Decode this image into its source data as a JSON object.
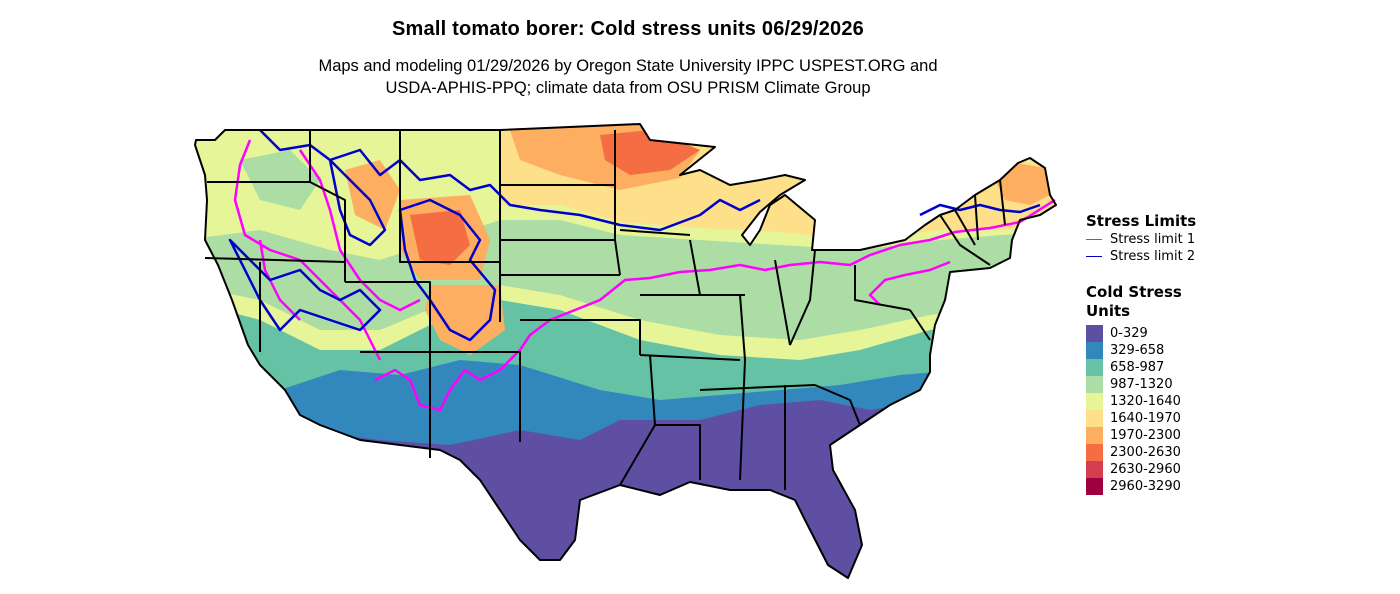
{
  "map": {
    "title": "Small tomato borer: Cold stress units 06/29/2026",
    "subtitle_line1": "Maps and modeling 01/29/2026 by Oregon State University IPPC USPEST.ORG and",
    "subtitle_line2": "USDA-APHIS-PPQ; climate data from OSU PRISM Climate Group",
    "region": "Continental United States"
  },
  "legend": {
    "stress": {
      "title": "Stress Limits",
      "items": [
        {
          "label": "Stress limit 1",
          "color": "#ff00ff"
        },
        {
          "label": "Stress limit 2",
          "color": "#0000cc"
        }
      ]
    },
    "cold": {
      "title": "Cold Stress Units",
      "items": [
        {
          "label": "0-329",
          "color": "#5e4fa2"
        },
        {
          "label": "329-658",
          "color": "#3288bd"
        },
        {
          "label": "658-987",
          "color": "#66c2a5"
        },
        {
          "label": "987-1320",
          "color": "#abdda4"
        },
        {
          "label": "1320-1640",
          "color": "#e6f598"
        },
        {
          "label": "1640-1970",
          "color": "#fee08b"
        },
        {
          "label": "1970-2300",
          "color": "#fdae61"
        },
        {
          "label": "2300-2630",
          "color": "#f46d43"
        },
        {
          "label": "2630-2960",
          "color": "#d53e4f"
        },
        {
          "label": "2960-3290",
          "color": "#9e0142"
        }
      ]
    }
  }
}
